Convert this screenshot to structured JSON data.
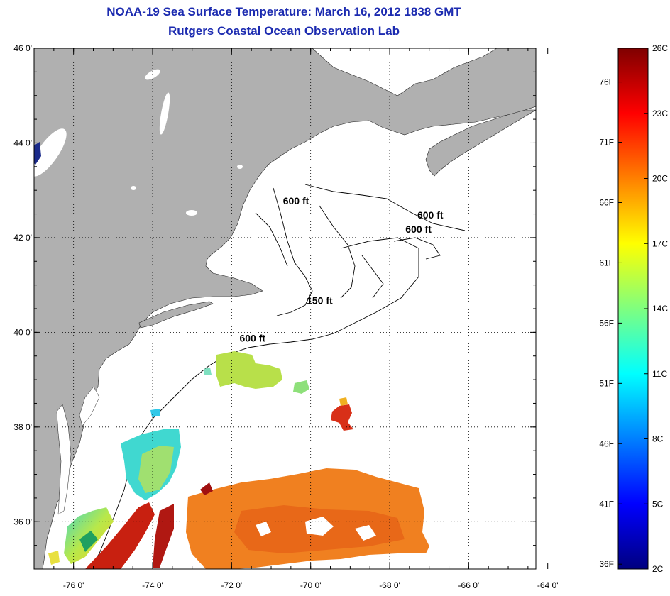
{
  "title": {
    "line1": "NOAA-19 Sea Surface Temperature:  March 16, 2012 1838 GMT",
    "line2": "Rutgers Coastal Ocean Observation Lab"
  },
  "map": {
    "lon_range": [
      -77,
      -64.3
    ],
    "lat_range": [
      35,
      46
    ],
    "lon_ticks": [
      {
        "value": -76,
        "label": "-76 0'"
      },
      {
        "value": -74,
        "label": "-74 0'"
      },
      {
        "value": -72,
        "label": "-72 0'"
      },
      {
        "value": -70,
        "label": "-70 0'"
      },
      {
        "value": -68,
        "label": "-68 0'"
      },
      {
        "value": -66,
        "label": "-66 0'"
      },
      {
        "value": -64,
        "label": "-64 0'"
      }
    ],
    "lat_ticks": [
      {
        "value": 36,
        "label": "36 0'"
      },
      {
        "value": 38,
        "label": "38 0'"
      },
      {
        "value": 40,
        "label": "40 0'"
      },
      {
        "value": 42,
        "label": "42 0'"
      },
      {
        "value": 44,
        "label": "44 0'"
      },
      {
        "value": 46,
        "label": "46 0'"
      }
    ],
    "grid": "dotted",
    "land_color": "#b0b0b0",
    "water_nodata_color": "#ffffff",
    "contour_labels": [
      {
        "text": "600 ft",
        "lon": -70.7,
        "lat": 42.7
      },
      {
        "text": "600 ft",
        "lon": -67.3,
        "lat": 42.4
      },
      {
        "text": "600 ft",
        "lon": -67.6,
        "lat": 42.1
      },
      {
        "text": "150 ft",
        "lon": -70.1,
        "lat": 40.6
      },
      {
        "text": "600 ft",
        "lon": -71.8,
        "lat": 39.8
      }
    ]
  },
  "colorbar": {
    "range_c": [
      2,
      26
    ],
    "celsius_labels": [
      "26C",
      "23C",
      "20C",
      "17C",
      "14C",
      "11C",
      "8C",
      "5C",
      "2C"
    ],
    "fahrenheit_labels": [
      "76F",
      "71F",
      "66F",
      "61F",
      "56F",
      "51F",
      "46F",
      "41F",
      "36F"
    ],
    "colormap": "jet"
  }
}
